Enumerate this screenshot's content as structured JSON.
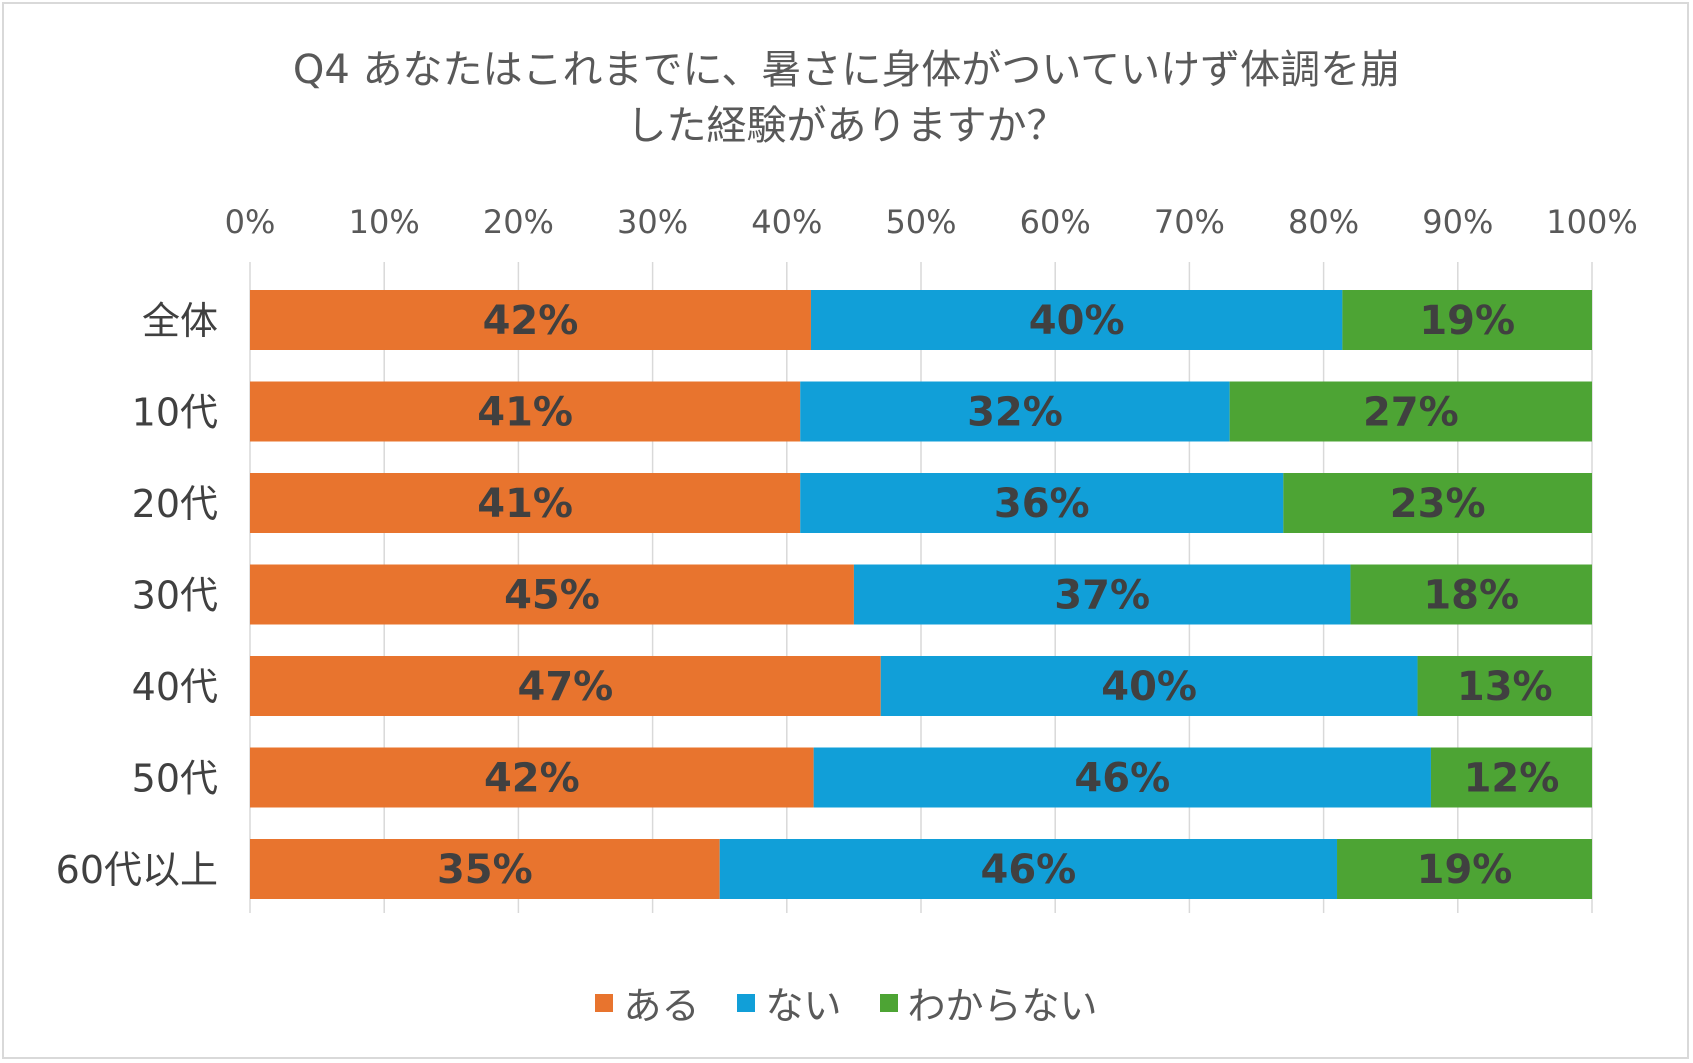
{
  "chart_data": {
    "type": "bar",
    "orientation": "horizontal",
    "stacked": "percent",
    "title_lines": [
      "Q4 あなたはこれまでに、暑さに身体がついていけず体調を崩",
      "した経験がありますか？"
    ],
    "categories": [
      "全体",
      "10代",
      "20代",
      "30代",
      "40代",
      "50代",
      "60代以上"
    ],
    "series": [
      {
        "name": "ある",
        "color": "#E8742E",
        "values": [
          41.8,
          41.0,
          41.0,
          45.0,
          47.0,
          42.0,
          35.0
        ],
        "labels": [
          "42%",
          "41%",
          "41%",
          "45%",
          "47%",
          "42%",
          "35%"
        ]
      },
      {
        "name": "ない",
        "color": "#119FD8",
        "values": [
          39.6,
          32.0,
          36.0,
          37.0,
          40.0,
          46.0,
          46.0
        ],
        "labels": [
          "40%",
          "32%",
          "36%",
          "37%",
          "40%",
          "46%",
          "46%"
        ]
      },
      {
        "name": "わからない",
        "color": "#4DA434",
        "values": [
          18.6,
          27.0,
          23.0,
          18.0,
          13.0,
          12.0,
          19.0
        ],
        "labels": [
          "19%",
          "27%",
          "23%",
          "18%",
          "13%",
          "12%",
          "19%"
        ]
      }
    ],
    "x_ticks": [
      "0%",
      "10%",
      "20%",
      "30%",
      "40%",
      "50%",
      "60%",
      "70%",
      "80%",
      "90%",
      "100%"
    ],
    "xlim": [
      0,
      100
    ],
    "grid": true,
    "axis_position": "top",
    "legend_position": "bottom"
  },
  "colors": {
    "title_text": "#595959",
    "label_text": "#404040",
    "gridline": "#d9d9d9",
    "border": "#d9d9d9"
  }
}
